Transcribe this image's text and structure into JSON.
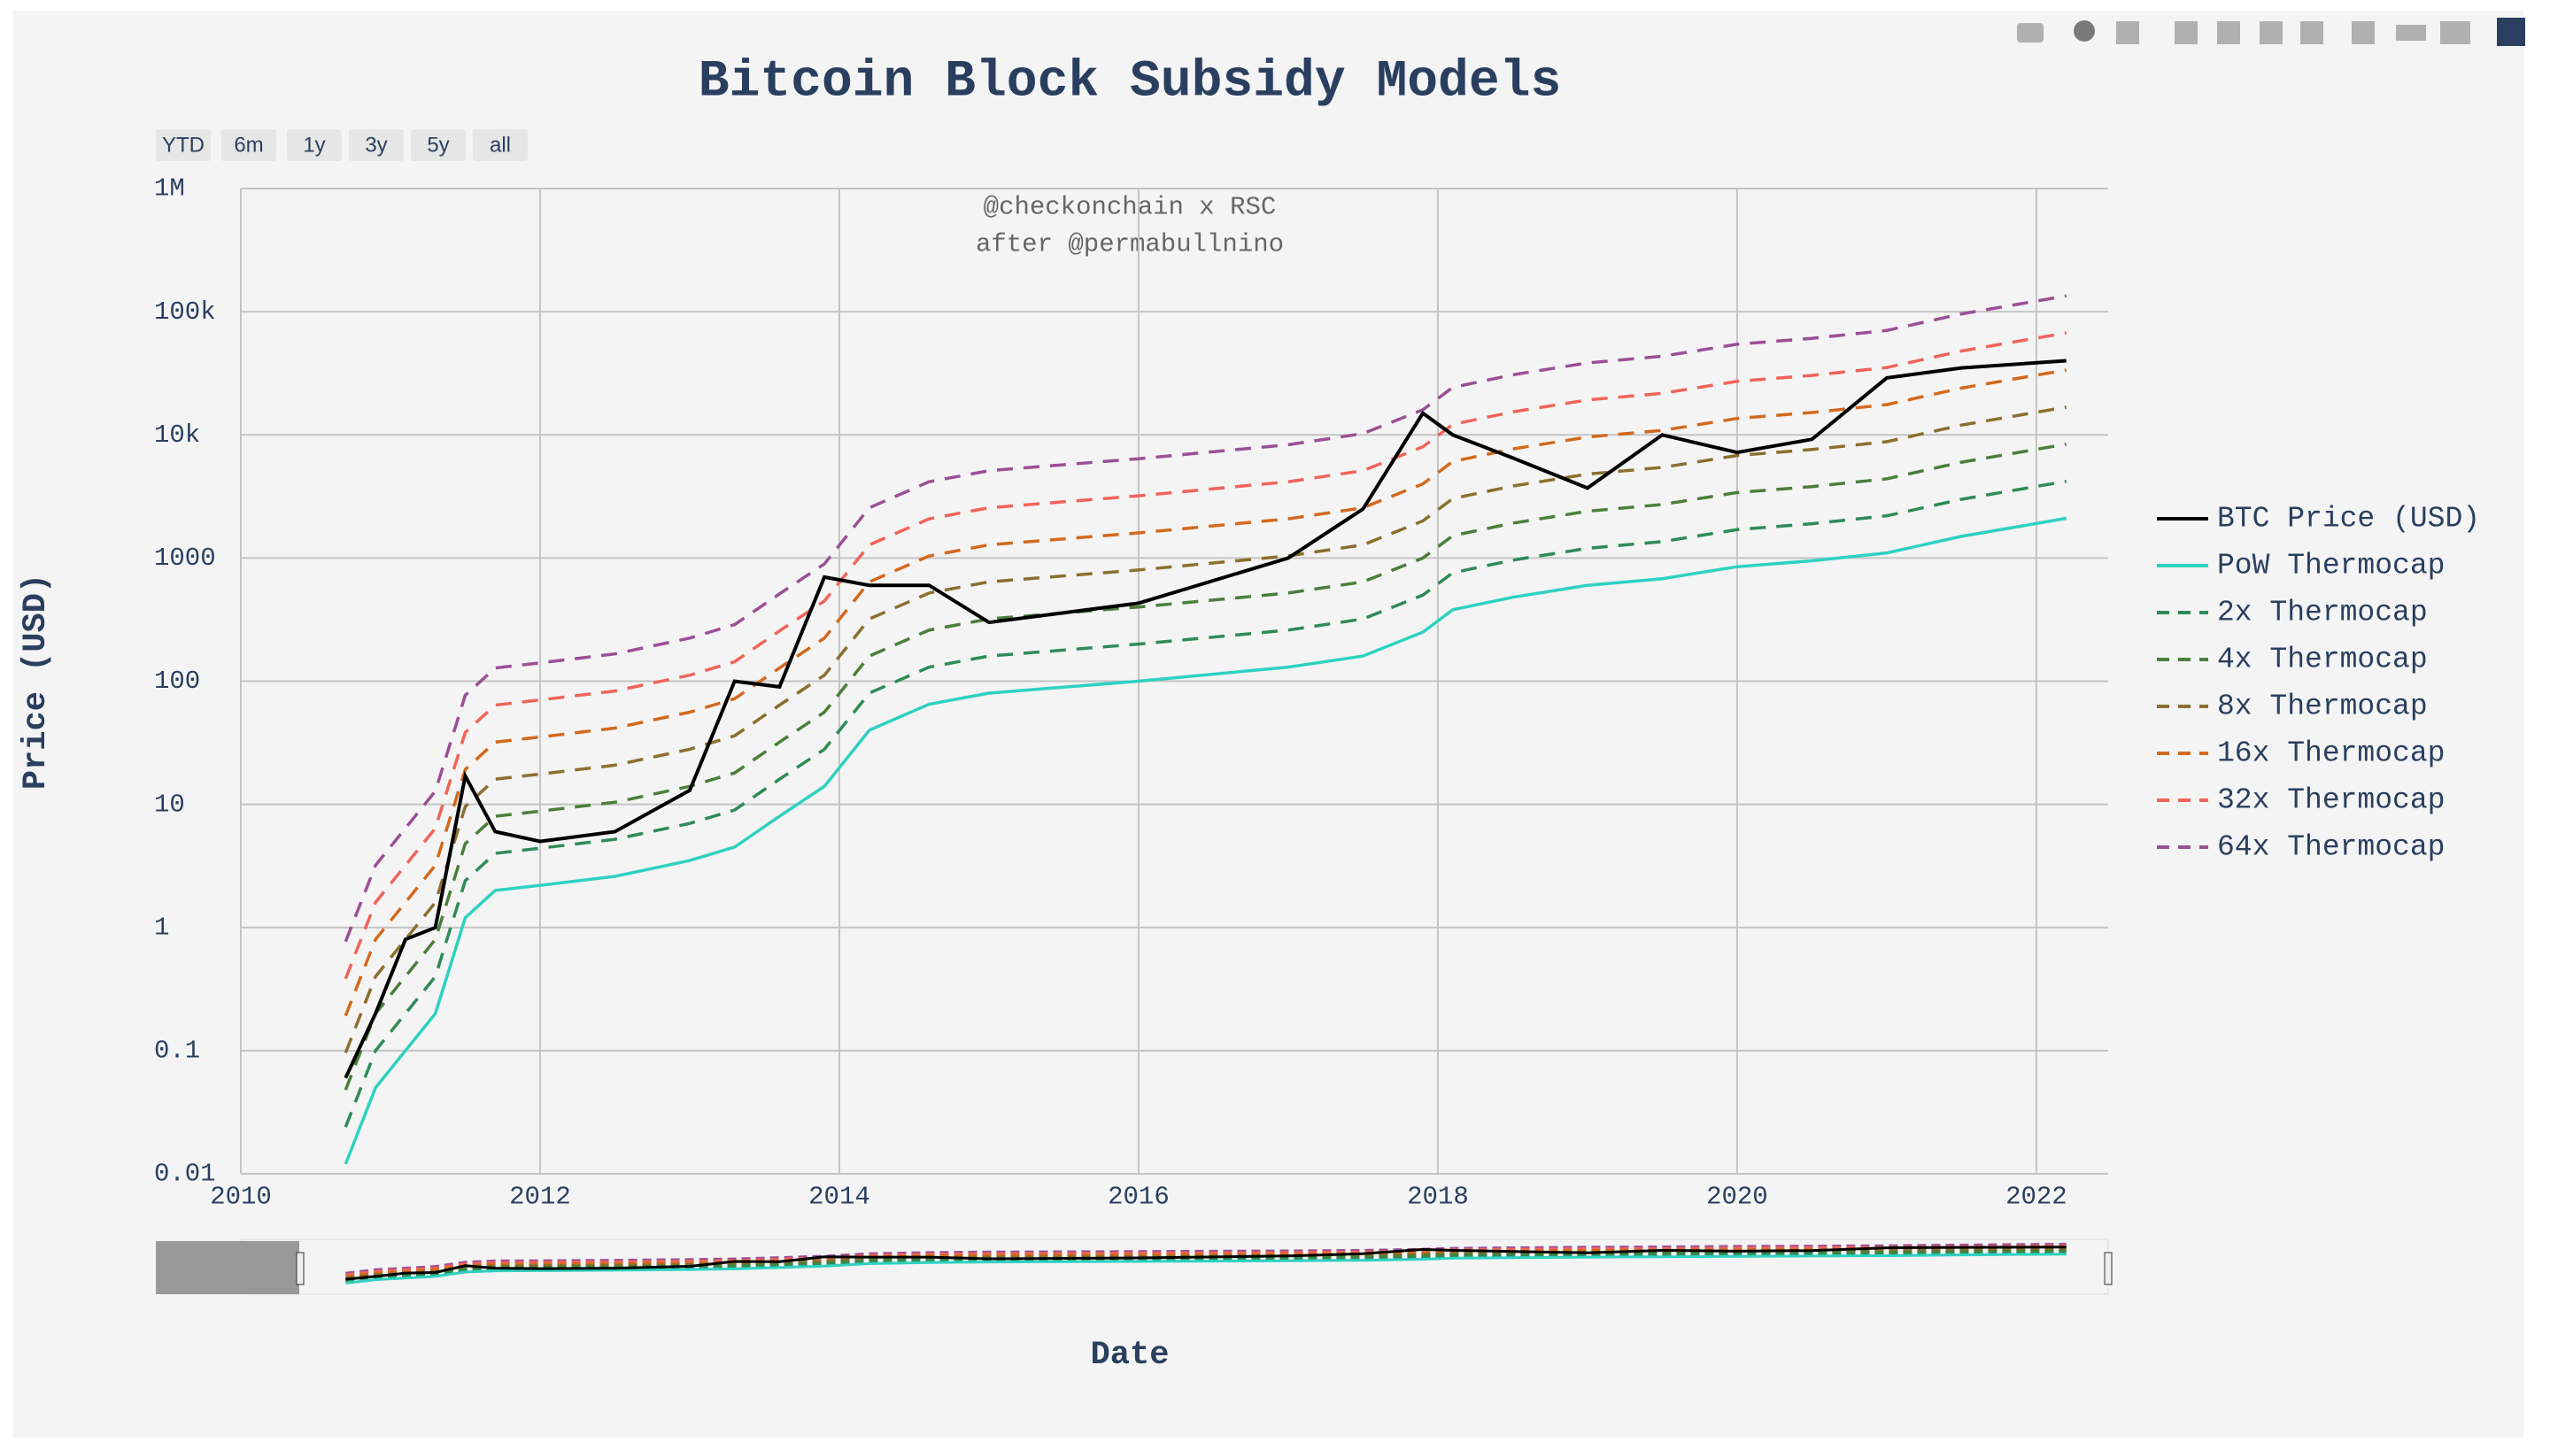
{
  "chart_data": {
    "type": "line",
    "title": "Bitcoin Block Subsidy Models",
    "annotation": [
      "@checkonchain x RSC",
      "after @permabullnino"
    ],
    "x_label": "Date",
    "y_label": "Price (USD)",
    "x": [
      2010.7,
      2010.9,
      2011.1,
      2011.3,
      2011.5,
      2011.7,
      2012,
      2012.5,
      2013,
      2013.3,
      2013.6,
      2013.9,
      2014.2,
      2014.6,
      2015,
      2016,
      2017,
      2017.5,
      2017.9,
      2018.1,
      2018.5,
      2019,
      2019.5,
      2020,
      2020.5,
      2021,
      2021.5,
      2022.2
    ],
    "xlim": [
      2010,
      2022.48
    ],
    "xticks": [
      2010,
      2012,
      2014,
      2016,
      2018,
      2020,
      2022
    ],
    "ylim": [
      0.01,
      1000000
    ],
    "log_y": true,
    "grid": true,
    "yticks": [
      0.01,
      0.1,
      1,
      10,
      100,
      1000,
      {
        "value": 10000,
        "label": "10k"
      },
      {
        "value": 100000,
        "label": "100k"
      },
      {
        "value": 1000000,
        "label": "1M"
      }
    ],
    "legend": "right",
    "series": [
      {
        "name": "BTC Price (USD)",
        "color": "#000000",
        "dash": "solid",
        "values": [
          0.06,
          0.2,
          0.8,
          1,
          17,
          6,
          5,
          6,
          13,
          100,
          90,
          700,
          600,
          600,
          300,
          430,
          1000,
          2500,
          15000,
          10000,
          6500,
          3700,
          10000,
          7200,
          9200,
          29000,
          35000,
          40000
        ]
      },
      {
        "name": "PoW Thermocap",
        "color": "#2ed1c1",
        "dash": "solid",
        "values": [
          0.012,
          0.05,
          0.1,
          0.2,
          1.2,
          2,
          2.2,
          2.6,
          3.5,
          4.5,
          8,
          14,
          40,
          65,
          80,
          100,
          130,
          160,
          250,
          380,
          480,
          600,
          680,
          850,
          950,
          1100,
          1500,
          2100
        ]
      },
      {
        "name": "2x Thermocap",
        "color": "#2e8b57",
        "dash": "dash",
        "values": [
          0.024,
          0.1,
          0.2,
          0.4,
          2.4,
          4,
          4.4,
          5.2,
          7,
          9,
          16,
          28,
          80,
          130,
          160,
          200,
          260,
          320,
          500,
          760,
          960,
          1200,
          1360,
          1700,
          1900,
          2200,
          3000,
          4200
        ]
      },
      {
        "name": "4x Thermocap",
        "color": "#4a7f3a",
        "dash": "dash",
        "values": [
          0.048,
          0.2,
          0.4,
          0.8,
          4.8,
          8,
          8.8,
          10.4,
          14,
          18,
          32,
          56,
          160,
          260,
          320,
          400,
          520,
          640,
          1000,
          1520,
          1920,
          2400,
          2720,
          3400,
          3800,
          4400,
          6000,
          8400
        ]
      },
      {
        "name": "8x Thermocap",
        "color": "#8b6f2e",
        "dash": "dash",
        "values": [
          0.096,
          0.4,
          0.8,
          1.6,
          9.6,
          16,
          17.6,
          20.8,
          28,
          36,
          64,
          112,
          320,
          520,
          640,
          800,
          1040,
          1280,
          2000,
          3040,
          3840,
          4800,
          5440,
          6800,
          7600,
          8800,
          12000,
          16800
        ]
      },
      {
        "name": "16x Thermocap",
        "color": "#d2691e",
        "dash": "dash",
        "values": [
          0.192,
          0.8,
          1.6,
          3.2,
          19.2,
          32,
          35.2,
          41.6,
          56,
          72,
          128,
          224,
          640,
          1040,
          1280,
          1600,
          2080,
          2560,
          4000,
          6080,
          7680,
          9600,
          10880,
          13600,
          15200,
          17600,
          24000,
          33600
        ]
      },
      {
        "name": "32x Thermocap",
        "color": "#f0645a",
        "dash": "dash",
        "values": [
          0.384,
          1.6,
          3.2,
          6.4,
          38.4,
          64,
          70.4,
          83.2,
          112,
          144,
          256,
          448,
          1280,
          2080,
          2560,
          3200,
          4160,
          5120,
          8000,
          12160,
          15360,
          19200,
          21760,
          27200,
          30400,
          35200,
          48000,
          67200
        ]
      },
      {
        "name": "64x Thermocap",
        "color": "#9b4f96",
        "dash": "dash",
        "values": [
          0.768,
          3.2,
          6.4,
          12.8,
          76.8,
          128,
          140.8,
          166.4,
          224,
          288,
          512,
          896,
          2560,
          4160,
          5120,
          6400,
          8320,
          10240,
          16000,
          24320,
          30720,
          38400,
          43520,
          54400,
          60800,
          70400,
          96000,
          134400
        ]
      }
    ]
  },
  "range_buttons": [
    "YTD",
    "6m",
    "1y",
    "3y",
    "5y",
    "all"
  ]
}
